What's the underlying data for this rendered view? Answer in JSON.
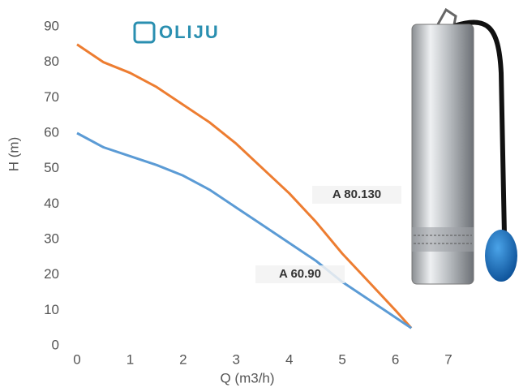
{
  "chart_data": {
    "type": "line",
    "logo": "OLIJU",
    "x_label": "Q (m3/h)",
    "y_label": "H (m)",
    "x": [
      0,
      0.5,
      1,
      1.5,
      2,
      2.5,
      3,
      3.5,
      4,
      4.5,
      5,
      5.5,
      6,
      6.3
    ],
    "series": [
      {
        "name": "A 80.130",
        "color": "#ed7d31",
        "values": [
          85,
          80,
          77,
          73,
          68,
          63,
          57,
          50,
          43,
          35,
          26,
          18,
          10,
          5
        ]
      },
      {
        "name": "A 60.90",
        "color": "#5b9bd5",
        "values": [
          60,
          56,
          53.5,
          51,
          48,
          44,
          39,
          34,
          29,
          24,
          18,
          13,
          8,
          5
        ]
      }
    ],
    "xlim": [
      0,
      7
    ],
    "xticks": [
      0,
      1,
      2,
      3,
      4,
      5,
      6,
      7
    ],
    "ylim": [
      0,
      90
    ],
    "yticks": [
      0,
      10,
      20,
      30,
      40,
      50,
      60,
      70,
      80,
      90
    ],
    "grid": false
  }
}
